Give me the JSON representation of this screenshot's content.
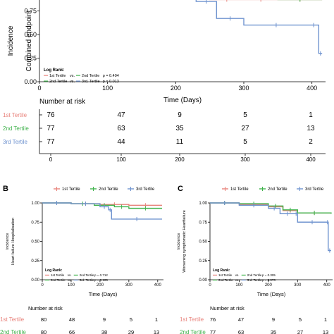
{
  "chart_data": [
    {
      "type": "line",
      "panel": "A",
      "ylabel": "Incidence\nCombined endpoint",
      "xlabel": "Time (Days)",
      "xlim": [
        0,
        420
      ],
      "ylim": [
        0,
        1.0
      ],
      "yticks": [
        "0.00",
        "0.25",
        "0.50",
        "0.75"
      ],
      "xticks": [
        "0",
        "100",
        "200",
        "300",
        "400"
      ],
      "logrank": {
        "title": "Log Rank:",
        "rows": [
          {
            "a": "1st Tertile",
            "b": "2nd Tertile",
            "p": "p = 0.494"
          },
          {
            "a": "2nd Tertile",
            "b": "3rd. Tertile",
            "p": "p = 0.013"
          }
        ]
      },
      "series": [
        {
          "name": "1st Tertile",
          "color": "#e8827b",
          "x": [
            0,
            40,
            120,
            180,
            200,
            220,
            250,
            300,
            350,
            415
          ],
          "y": [
            1.0,
            0.99,
            0.98,
            0.95,
            0.92,
            0.89,
            0.87,
            0.87,
            0.87,
            0.87
          ]
        },
        {
          "name": "2nd Tertile",
          "color": "#3fb24b",
          "x": [
            0,
            60,
            150,
            200,
            220,
            260,
            300,
            350,
            415
          ],
          "y": [
            1.0,
            0.995,
            0.985,
            0.96,
            0.95,
            0.92,
            0.89,
            0.87,
            0.87
          ]
        },
        {
          "name": "3rd Tertile",
          "color": "#6f93cf",
          "x": [
            0,
            60,
            120,
            150,
            190,
            230,
            260,
            300,
            395,
            410,
            415
          ],
          "y": [
            1.0,
            0.99,
            0.97,
            0.96,
            0.95,
            0.85,
            0.67,
            0.6,
            0.6,
            0.3,
            0.3
          ]
        }
      ],
      "risk_table": {
        "title": "Number at risk",
        "times": [
          "0",
          "100",
          "200",
          "300",
          "400"
        ],
        "rows": [
          {
            "label": "1st Tertile",
            "color": "#e8827b",
            "values": [
              "76",
              "47",
              "9",
              "5",
              "1"
            ]
          },
          {
            "label": "2nd Tertile",
            "color": "#3fb24b",
            "values": [
              "77",
              "63",
              "35",
              "27",
              "13"
            ]
          },
          {
            "label": "3rd Tertile",
            "color": "#6f93cf",
            "values": [
              "77",
              "44",
              "11",
              "5",
              "2"
            ]
          }
        ]
      }
    },
    {
      "type": "line",
      "panel": "B",
      "ylabel": "Incidence\nHeart failure Hospitalisation",
      "xlabel": "Time (Days)",
      "xlim": [
        0,
        420
      ],
      "ylim": [
        0,
        1.0
      ],
      "yticks": [
        "0.00",
        "0.25",
        "0.50",
        "0.75",
        "1.00"
      ],
      "xticks": [
        "0",
        "100",
        "200",
        "300",
        "400"
      ],
      "legend": [
        "1st Tertile",
        "2nd Tertile",
        "3rd Tertile"
      ],
      "logrank": {
        "title": "Log Rank:",
        "rows": [
          {
            "a": "1st Tertile",
            "b": "2nd Tertile",
            "p": "p = 0.712"
          },
          {
            "a": "2nd Tertile",
            "b": "3rd. Tertile",
            "p": "p = 0.106"
          }
        ]
      },
      "series": [
        {
          "name": "1st Tertile",
          "color": "#e8827b",
          "x": [
            0,
            100,
            200,
            300,
            415
          ],
          "y": [
            1.0,
            0.99,
            0.98,
            0.97,
            0.97
          ]
        },
        {
          "name": "2nd Tertile",
          "color": "#3fb24b",
          "x": [
            0,
            100,
            180,
            250,
            300,
            415
          ],
          "y": [
            1.0,
            0.99,
            0.97,
            0.95,
            0.93,
            0.93
          ]
        },
        {
          "name": "3rd Tertile",
          "color": "#6f93cf",
          "x": [
            0,
            100,
            200,
            230,
            240,
            415
          ],
          "y": [
            1.0,
            0.99,
            0.95,
            0.91,
            0.79,
            0.79
          ]
        }
      ],
      "risk_table": {
        "title": "Number at risk",
        "rows": [
          {
            "label": "1st Tertile",
            "color": "#e8827b",
            "values": [
              "80",
              "48",
              "9",
              "5",
              "1"
            ]
          },
          {
            "label": "2nd Tertile",
            "color": "#3fb24b",
            "values": [
              "80",
              "66",
              "38",
              "29",
              "13"
            ]
          }
        ]
      }
    },
    {
      "type": "line",
      "panel": "C",
      "ylabel": "Incidence\nWorsening symptomatic Heartfailure",
      "xlabel": "Time (Days)",
      "xlim": [
        0,
        420
      ],
      "ylim": [
        0,
        1.0
      ],
      "yticks": [
        "0.00",
        "0.25",
        "0.50",
        "0.75",
        "1.00"
      ],
      "xticks": [
        "0",
        "100",
        "200",
        "300",
        "400"
      ],
      "legend": [
        "1st Tertile",
        "2nd Tertile",
        "3rd Tertile"
      ],
      "logrank": {
        "title": "Log Rank:",
        "rows": [
          {
            "a": "1st Tertile",
            "b": "2nd Tertile",
            "p": "p = 0.305"
          },
          {
            "a": "2nd Tertile",
            "b": "3rd. Tertile",
            "p": "p = 0.073"
          }
        ]
      },
      "series": [
        {
          "name": "1st Tertile",
          "color": "#e8827b",
          "x": [
            0,
            100,
            200,
            250,
            300,
            415
          ],
          "y": [
            1.0,
            0.98,
            0.95,
            0.9,
            0.87,
            0.87
          ]
        },
        {
          "name": "2nd Tertile",
          "color": "#3fb24b",
          "x": [
            0,
            100,
            200,
            250,
            300,
            415
          ],
          "y": [
            1.0,
            0.99,
            0.96,
            0.91,
            0.87,
            0.86
          ]
        },
        {
          "name": "3rd Tertile",
          "color": "#6f93cf",
          "x": [
            0,
            100,
            200,
            240,
            290,
            300,
            400,
            405,
            415
          ],
          "y": [
            1.0,
            0.97,
            0.93,
            0.86,
            0.86,
            0.75,
            0.75,
            0.38,
            0.38
          ]
        }
      ],
      "risk_table": {
        "title": "Number at risk",
        "rows": [
          {
            "label": "1st Tertile",
            "color": "#e8827b",
            "values": [
              "76",
              "47",
              "9",
              "5",
              "1"
            ]
          },
          {
            "label": "2nd Tertile",
            "color": "#3fb24b",
            "values": [
              "77",
              "63",
              "35",
              "27",
              "13"
            ]
          }
        ]
      }
    }
  ],
  "panel_labels": {
    "b": "B",
    "c": "C"
  }
}
